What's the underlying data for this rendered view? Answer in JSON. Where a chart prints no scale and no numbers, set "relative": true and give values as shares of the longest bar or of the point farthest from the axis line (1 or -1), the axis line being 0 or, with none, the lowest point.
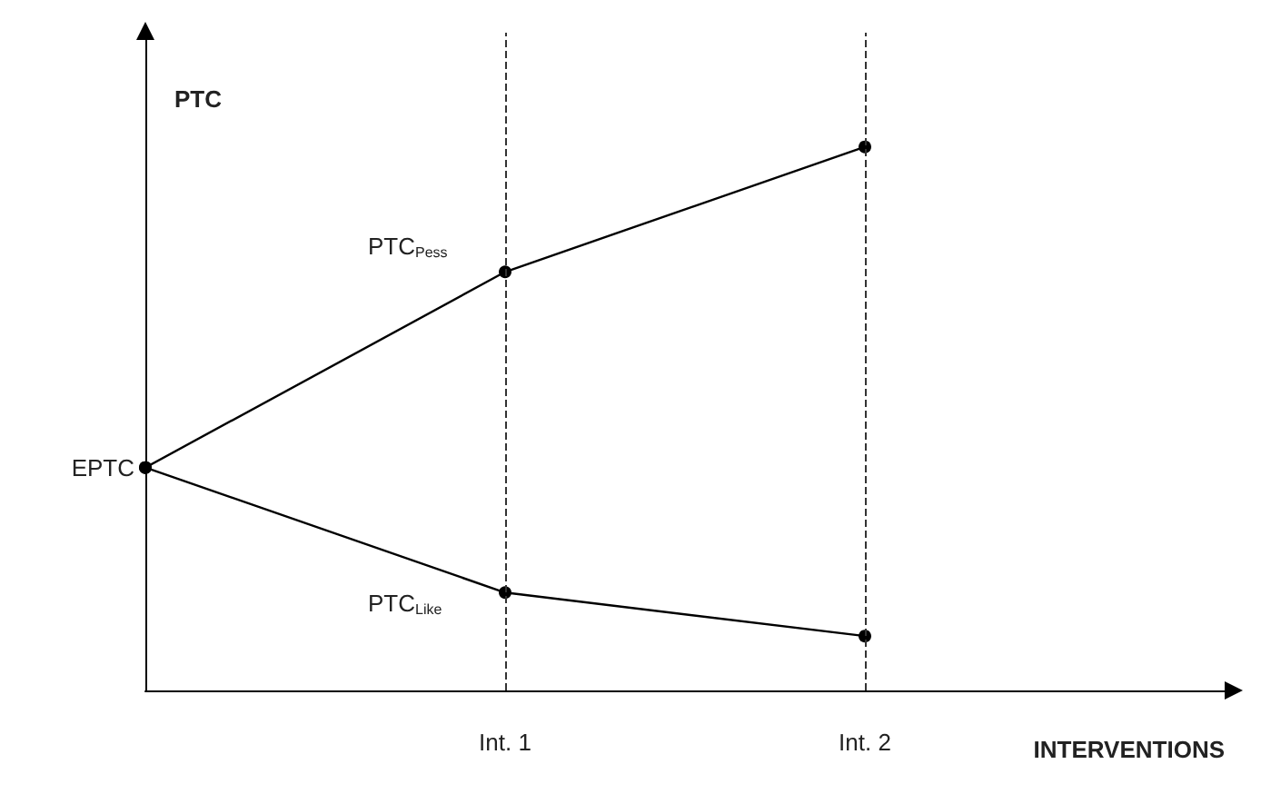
{
  "chart_data": {
    "type": "line",
    "relative": true,
    "xlabel": "INTERVENTIONS",
    "ylabel": "PTC",
    "categories": [
      null,
      "Int. 1",
      "Int. 2",
      null
    ],
    "series": [
      {
        "name": "PTC$_{Pess}$",
        "color": "#000000",
        "values": [
          0.41,
          0.77,
          1.0,
          null
        ]
      },
      {
        "name": "PTC$_{Like}$",
        "color": "#000000",
        "values": [
          0.41,
          0.18,
          0.1,
          null
        ]
      }
    ],
    "annotations": [
      "EPTC"
    ],
    "ref_lines": [
      {
        "axis": "x",
        "value": "Int. 1",
        "line_style": "dashed"
      },
      {
        "axis": "x",
        "value": "Int. 2",
        "line_style": "dashed"
      }
    ],
    "marker": "circle",
    "line_style": "solid",
    "grid": false,
    "legend": false
  }
}
